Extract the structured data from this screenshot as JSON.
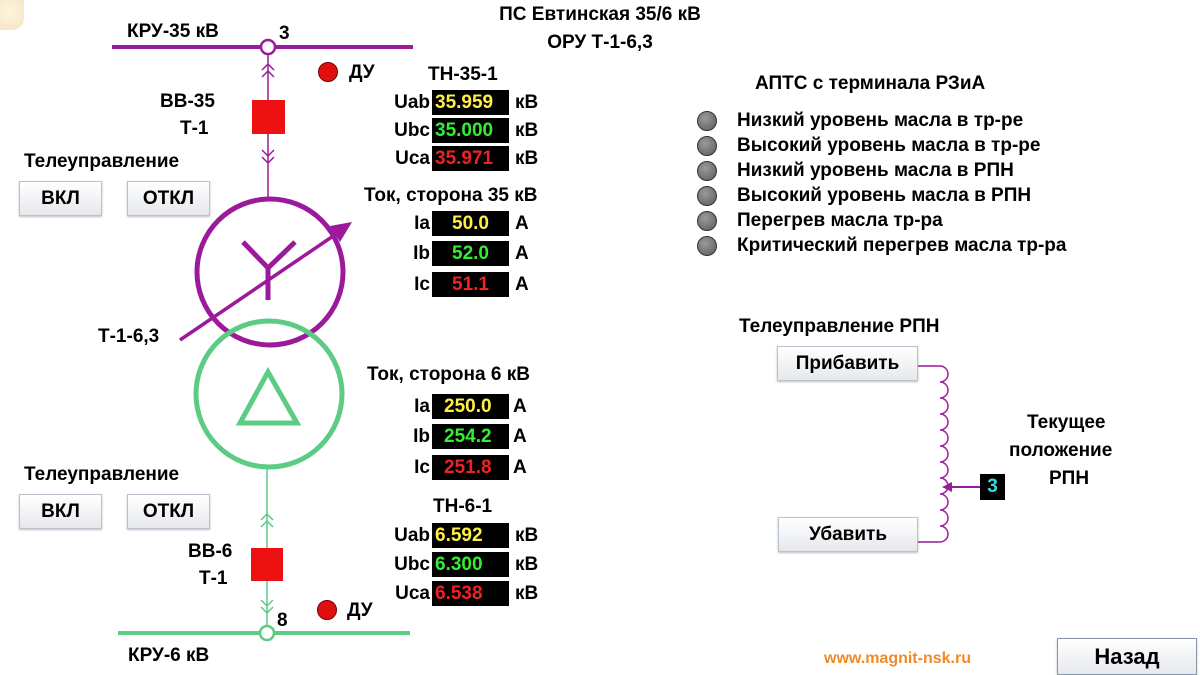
{
  "header": {
    "title": "ПС Евтинская 35/6 кВ",
    "subtitle": "ОРУ Т-1-6,3"
  },
  "bus35": {
    "label": "КРУ-35 кВ",
    "node_number": "3"
  },
  "bus6": {
    "label": "КРУ-6 кВ",
    "node_number": "8"
  },
  "breaker35": {
    "label_line1": "ВВ-35",
    "label_line2": "Т-1",
    "du_label": "ДУ"
  },
  "breaker6": {
    "label_line1": "ВВ-6",
    "label_line2": "Т-1",
    "du_label": "ДУ"
  },
  "transformer": {
    "label": "Т-1-6,3"
  },
  "telecontrol35": {
    "title": "Телеуправление",
    "on_label": "ВКЛ",
    "off_label": "ОТКЛ"
  },
  "telecontrol6": {
    "title": "Телеуправление",
    "on_label": "ВКЛ",
    "off_label": "ОТКЛ"
  },
  "tn35": {
    "title": "ТН-35-1",
    "rows": [
      {
        "name": "Uab",
        "value": "35.959",
        "unit": "кВ"
      },
      {
        "name": "Ubc",
        "value": "35.000",
        "unit": "кВ"
      },
      {
        "name": "Uca",
        "value": "35.971",
        "unit": "кВ"
      }
    ]
  },
  "current35": {
    "title": "Ток, сторона 35 кВ",
    "rows": [
      {
        "name": "Ia",
        "value": "50.0",
        "unit": "А"
      },
      {
        "name": "Ib",
        "value": "52.0",
        "unit": "А"
      },
      {
        "name": "Ic",
        "value": "51.1",
        "unit": "А"
      }
    ]
  },
  "current6": {
    "title": "Ток, сторона 6 кВ",
    "rows": [
      {
        "name": "Ia",
        "value": "250.0",
        "unit": "А"
      },
      {
        "name": "Ib",
        "value": "254.2",
        "unit": "А"
      },
      {
        "name": "Ic",
        "value": "251.8",
        "unit": "А"
      }
    ]
  },
  "tn6": {
    "title": "ТН-6-1",
    "rows": [
      {
        "name": "Uab",
        "value": "6.592",
        "unit": "кВ"
      },
      {
        "name": "Ubc",
        "value": "6.300",
        "unit": "кВ"
      },
      {
        "name": "Uca",
        "value": "6.538",
        "unit": "кВ"
      }
    ]
  },
  "apts": {
    "title": "АПТС с терминала РЗиА",
    "items": [
      "Низкий уровень масла в тр-ре",
      "Высокий уровень масла в тр-ре",
      "Низкий уровень масла в РПН",
      "Высокий уровень масла в РПН",
      "Перегрев масла тр-ра",
      "Критический перегрев масла тр-ра"
    ]
  },
  "rpn": {
    "title": "Телеуправление РПН",
    "raise_label": "Прибавить",
    "lower_label": "Убавить",
    "position_label_line1": "Текущее",
    "position_label_line2": "положение",
    "position_label_line3": "РПН",
    "position_value": "3"
  },
  "footer": {
    "website": "www.magnit-nsk.ru",
    "back_label": "Назад"
  },
  "colors": {
    "side35": "#9b1a9b",
    "side6": "#5ccb84",
    "breaker": "#ee1111",
    "website": "#f08a2a",
    "rpn_value": "#33dddd"
  }
}
